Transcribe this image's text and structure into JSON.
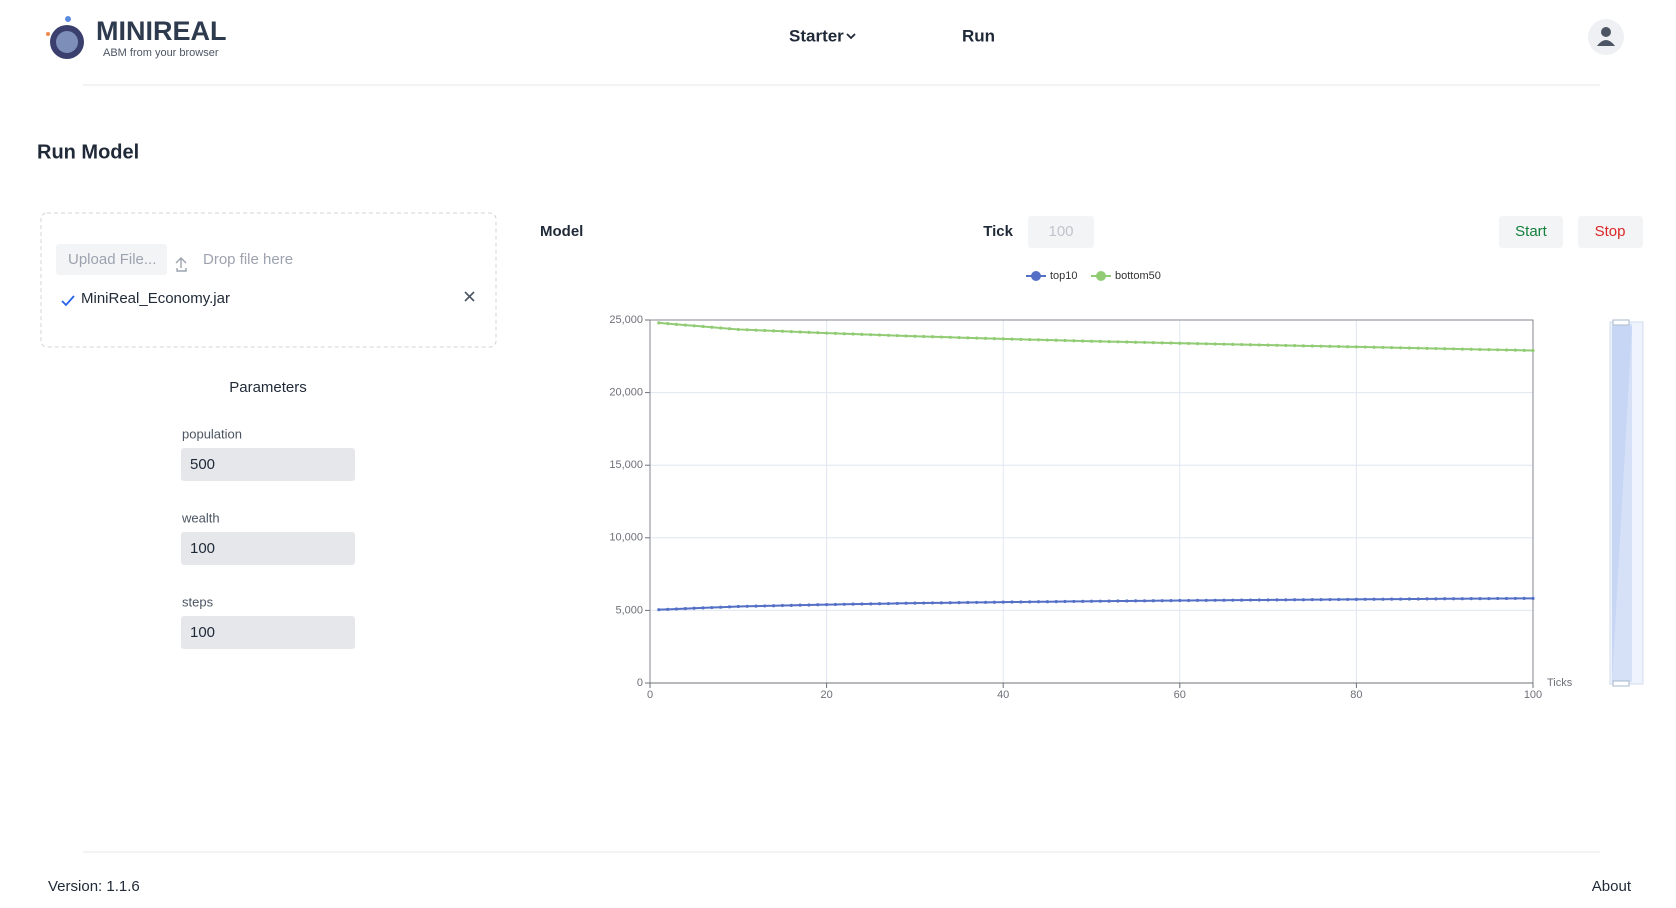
{
  "header": {
    "logo": "MINIREAL",
    "tagline": "ABM from your browser",
    "nav": [
      "Starter",
      "Run"
    ]
  },
  "page_title": "Run Model",
  "upload": {
    "button": "Upload File...",
    "drop_hint": "Drop file here",
    "file": "MiniReal_Economy.jar"
  },
  "parameters": {
    "title": "Parameters",
    "fields": [
      {
        "label": "population",
        "value": 500
      },
      {
        "label": "wealth",
        "value": 100
      },
      {
        "label": "steps",
        "value": 100
      }
    ]
  },
  "model": {
    "label": "Model",
    "tick_label": "Tick",
    "tick_placeholder": 100,
    "start": "Start",
    "stop": "Stop"
  },
  "chart_data": {
    "type": "line",
    "x_label": "Ticks",
    "x": [
      1,
      2,
      3,
      4,
      5,
      6,
      7,
      8,
      9,
      10,
      11,
      12,
      13,
      14,
      15,
      16,
      17,
      18,
      19,
      20,
      21,
      22,
      23,
      24,
      25,
      26,
      27,
      28,
      29,
      30,
      31,
      32,
      33,
      34,
      35,
      36,
      37,
      38,
      39,
      40,
      41,
      42,
      43,
      44,
      45,
      46,
      47,
      48,
      49,
      50,
      51,
      52,
      53,
      54,
      55,
      56,
      57,
      58,
      59,
      60,
      61,
      62,
      63,
      64,
      65,
      66,
      67,
      68,
      69,
      70,
      71,
      72,
      73,
      74,
      75,
      76,
      77,
      78,
      79,
      80,
      81,
      82,
      83,
      84,
      85,
      86,
      87,
      88,
      89,
      90,
      91,
      92,
      93,
      94,
      95,
      96,
      97,
      98,
      99,
      100
    ],
    "series": [
      {
        "name": "top10",
        "color": "#5470c6",
        "values": [
          5050,
          5074,
          5099,
          5123,
          5148,
          5172,
          5197,
          5221,
          5246,
          5270,
          5283,
          5296,
          5309,
          5322,
          5335,
          5348,
          5361,
          5374,
          5387,
          5400,
          5410,
          5420,
          5430,
          5440,
          5450,
          5460,
          5470,
          5480,
          5490,
          5500,
          5507,
          5514,
          5521,
          5528,
          5535,
          5542,
          5549,
          5556,
          5563,
          5570,
          5576,
          5582,
          5588,
          5594,
          5600,
          5606,
          5612,
          5618,
          5624,
          5630,
          5635,
          5640,
          5645,
          5650,
          5655,
          5660,
          5665,
          5670,
          5675,
          5680,
          5684,
          5688,
          5692,
          5696,
          5700,
          5704,
          5708,
          5712,
          5716,
          5720,
          5724,
          5728,
          5732,
          5736,
          5740,
          5744,
          5748,
          5752,
          5756,
          5760,
          5764,
          5768,
          5772,
          5776,
          5780,
          5784,
          5788,
          5792,
          5796,
          5800,
          5803,
          5806,
          5809,
          5812,
          5815,
          5818,
          5821,
          5824,
          5827,
          5830
        ]
      },
      {
        "name": "bottom50",
        "color": "#91cc75",
        "values": [
          24800,
          24750,
          24700,
          24650,
          24600,
          24550,
          24500,
          24450,
          24400,
          24350,
          24325,
          24300,
          24275,
          24250,
          24225,
          24200,
          24175,
          24150,
          24125,
          24100,
          24078,
          24056,
          24034,
          24012,
          23990,
          23968,
          23946,
          23924,
          23902,
          23880,
          23862,
          23844,
          23826,
          23808,
          23790,
          23772,
          23754,
          23736,
          23718,
          23700,
          23684,
          23668,
          23652,
          23636,
          23620,
          23604,
          23588,
          23572,
          23556,
          23540,
          23526,
          23512,
          23498,
          23484,
          23470,
          23456,
          23442,
          23428,
          23414,
          23400,
          23387,
          23374,
          23361,
          23348,
          23335,
          23322,
          23309,
          23296,
          23283,
          23270,
          23258,
          23246,
          23234,
          23222,
          23210,
          23198,
          23186,
          23174,
          23162,
          23150,
          23137,
          23124,
          23111,
          23098,
          23085,
          23072,
          23059,
          23046,
          23033,
          23020,
          23008,
          22996,
          22984,
          22972,
          22960,
          22948,
          22936,
          22924,
          22912,
          22900
        ]
      }
    ],
    "xlim": [
      0,
      100
    ],
    "xticks": [
      0,
      20,
      40,
      60,
      80,
      100
    ],
    "ylim": [
      0,
      25000
    ],
    "yticks": [
      0,
      {
        "value": 5000,
        "label": "5,000"
      },
      {
        "value": 10000,
        "label": "10,000"
      },
      {
        "value": 15000,
        "label": "15,000"
      },
      {
        "value": 20000,
        "label": "20,000"
      },
      {
        "value": 25000,
        "label": "25,000"
      }
    ],
    "grid": true
  },
  "footer": {
    "version": "Version: 1.1.6",
    "about": "About"
  }
}
